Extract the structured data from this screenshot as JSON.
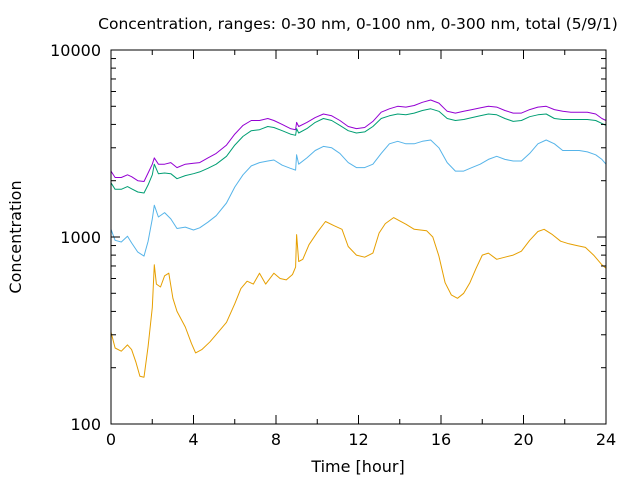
{
  "chart_data": {
    "type": "line",
    "title": "Concentration, ranges: 0-30 nm, 0-100 nm, 0-300 nm, total (5/9/1)",
    "xlabel": "Time [hour]",
    "ylabel": "Concentration",
    "xlim": [
      0,
      24
    ],
    "ylim": [
      100,
      10000
    ],
    "yscale": "log",
    "grid": false,
    "legend": "none",
    "x_ticks": [
      0,
      4,
      8,
      12,
      16,
      20,
      24
    ],
    "x_tick_labels": [
      "0",
      "4",
      "8",
      "12",
      "16",
      "20",
      "24"
    ],
    "y_ticks": [
      100,
      1000,
      10000
    ],
    "y_tick_labels": [
      "100",
      "1000",
      "10000"
    ],
    "series": [
      {
        "color": "#e69f00",
        "points": [
          [
            0,
            310
          ],
          [
            0.2,
            255
          ],
          [
            0.5,
            245
          ],
          [
            0.8,
            265
          ],
          [
            1.0,
            250
          ],
          [
            1.2,
            215
          ],
          [
            1.4,
            180
          ],
          [
            1.6,
            178
          ],
          [
            1.8,
            260
          ],
          [
            2.0,
            420
          ],
          [
            2.1,
            710
          ],
          [
            2.2,
            560
          ],
          [
            2.4,
            540
          ],
          [
            2.6,
            620
          ],
          [
            2.8,
            640
          ],
          [
            3.0,
            470
          ],
          [
            3.2,
            400
          ],
          [
            3.6,
            330
          ],
          [
            3.9,
            270
          ],
          [
            4.1,
            240
          ],
          [
            4.4,
            250
          ],
          [
            4.8,
            275
          ],
          [
            5.2,
            310
          ],
          [
            5.6,
            350
          ],
          [
            6.0,
            440
          ],
          [
            6.3,
            530
          ],
          [
            6.6,
            580
          ],
          [
            6.9,
            560
          ],
          [
            7.2,
            640
          ],
          [
            7.5,
            560
          ],
          [
            7.9,
            640
          ],
          [
            8.2,
            600
          ],
          [
            8.5,
            590
          ],
          [
            8.8,
            630
          ],
          [
            8.95,
            690
          ],
          [
            9.0,
            1030
          ],
          [
            9.1,
            740
          ],
          [
            9.3,
            760
          ],
          [
            9.6,
            910
          ],
          [
            10.0,
            1060
          ],
          [
            10.4,
            1210
          ],
          [
            10.8,
            1150
          ],
          [
            11.2,
            1100
          ],
          [
            11.5,
            890
          ],
          [
            11.9,
            800
          ],
          [
            12.3,
            780
          ],
          [
            12.7,
            820
          ],
          [
            13.0,
            1050
          ],
          [
            13.3,
            1180
          ],
          [
            13.7,
            1270
          ],
          [
            14.0,
            1220
          ],
          [
            14.3,
            1170
          ],
          [
            14.7,
            1100
          ],
          [
            15.0,
            1090
          ],
          [
            15.3,
            1080
          ],
          [
            15.6,
            1000
          ],
          [
            15.9,
            790
          ],
          [
            16.2,
            570
          ],
          [
            16.5,
            490
          ],
          [
            16.8,
            470
          ],
          [
            17.1,
            500
          ],
          [
            17.4,
            570
          ],
          [
            17.7,
            680
          ],
          [
            18.0,
            800
          ],
          [
            18.3,
            820
          ],
          [
            18.7,
            760
          ],
          [
            19.1,
            780
          ],
          [
            19.5,
            800
          ],
          [
            19.9,
            840
          ],
          [
            20.3,
            960
          ],
          [
            20.7,
            1070
          ],
          [
            21.0,
            1100
          ],
          [
            21.4,
            1030
          ],
          [
            21.8,
            950
          ],
          [
            22.2,
            920
          ],
          [
            22.6,
            900
          ],
          [
            23.0,
            880
          ],
          [
            23.4,
            800
          ],
          [
            23.8,
            710
          ],
          [
            24.0,
            680
          ]
        ]
      },
      {
        "color": "#56b4e9",
        "points": [
          [
            0,
            1100
          ],
          [
            0.2,
            960
          ],
          [
            0.5,
            940
          ],
          [
            0.8,
            1010
          ],
          [
            1.0,
            930
          ],
          [
            1.3,
            830
          ],
          [
            1.6,
            790
          ],
          [
            1.8,
            950
          ],
          [
            2.0,
            1250
          ],
          [
            2.1,
            1480
          ],
          [
            2.3,
            1280
          ],
          [
            2.6,
            1350
          ],
          [
            2.9,
            1250
          ],
          [
            3.2,
            1110
          ],
          [
            3.6,
            1130
          ],
          [
            4.0,
            1090
          ],
          [
            4.3,
            1120
          ],
          [
            4.7,
            1200
          ],
          [
            5.1,
            1300
          ],
          [
            5.6,
            1520
          ],
          [
            6.0,
            1850
          ],
          [
            6.4,
            2150
          ],
          [
            6.8,
            2400
          ],
          [
            7.2,
            2500
          ],
          [
            7.6,
            2550
          ],
          [
            7.9,
            2580
          ],
          [
            8.3,
            2420
          ],
          [
            8.7,
            2330
          ],
          [
            8.95,
            2280
          ],
          [
            9.0,
            2750
          ],
          [
            9.1,
            2450
          ],
          [
            9.5,
            2650
          ],
          [
            9.9,
            2900
          ],
          [
            10.3,
            3050
          ],
          [
            10.7,
            3000
          ],
          [
            11.1,
            2800
          ],
          [
            11.5,
            2500
          ],
          [
            11.9,
            2350
          ],
          [
            12.3,
            2350
          ],
          [
            12.7,
            2450
          ],
          [
            13.1,
            2800
          ],
          [
            13.5,
            3150
          ],
          [
            13.9,
            3250
          ],
          [
            14.3,
            3150
          ],
          [
            14.7,
            3150
          ],
          [
            15.1,
            3250
          ],
          [
            15.5,
            3300
          ],
          [
            15.9,
            3000
          ],
          [
            16.3,
            2500
          ],
          [
            16.7,
            2250
          ],
          [
            17.1,
            2250
          ],
          [
            17.5,
            2350
          ],
          [
            17.9,
            2450
          ],
          [
            18.3,
            2600
          ],
          [
            18.7,
            2700
          ],
          [
            19.1,
            2600
          ],
          [
            19.5,
            2550
          ],
          [
            19.9,
            2550
          ],
          [
            20.3,
            2800
          ],
          [
            20.7,
            3150
          ],
          [
            21.1,
            3300
          ],
          [
            21.5,
            3150
          ],
          [
            21.9,
            2900
          ],
          [
            22.3,
            2900
          ],
          [
            22.7,
            2900
          ],
          [
            23.1,
            2850
          ],
          [
            23.5,
            2750
          ],
          [
            23.8,
            2600
          ],
          [
            24.0,
            2450
          ]
        ]
      },
      {
        "color": "#009e73",
        "points": [
          [
            0,
            1950
          ],
          [
            0.2,
            1800
          ],
          [
            0.5,
            1800
          ],
          [
            0.8,
            1860
          ],
          [
            1.0,
            1810
          ],
          [
            1.3,
            1740
          ],
          [
            1.6,
            1720
          ],
          [
            1.8,
            1900
          ],
          [
            2.0,
            2150
          ],
          [
            2.1,
            2450
          ],
          [
            2.3,
            2180
          ],
          [
            2.6,
            2200
          ],
          [
            2.9,
            2180
          ],
          [
            3.2,
            2050
          ],
          [
            3.6,
            2130
          ],
          [
            4.0,
            2180
          ],
          [
            4.3,
            2230
          ],
          [
            4.7,
            2330
          ],
          [
            5.1,
            2450
          ],
          [
            5.6,
            2700
          ],
          [
            6.0,
            3100
          ],
          [
            6.4,
            3450
          ],
          [
            6.8,
            3700
          ],
          [
            7.2,
            3750
          ],
          [
            7.6,
            3900
          ],
          [
            7.9,
            3850
          ],
          [
            8.3,
            3700
          ],
          [
            8.7,
            3550
          ],
          [
            8.95,
            3500
          ],
          [
            9.0,
            3800
          ],
          [
            9.1,
            3600
          ],
          [
            9.5,
            3800
          ],
          [
            9.9,
            4100
          ],
          [
            10.3,
            4300
          ],
          [
            10.7,
            4200
          ],
          [
            11.1,
            3950
          ],
          [
            11.5,
            3700
          ],
          [
            11.9,
            3600
          ],
          [
            12.3,
            3650
          ],
          [
            12.7,
            3900
          ],
          [
            13.1,
            4300
          ],
          [
            13.5,
            4450
          ],
          [
            13.9,
            4550
          ],
          [
            14.3,
            4500
          ],
          [
            14.7,
            4600
          ],
          [
            15.1,
            4750
          ],
          [
            15.5,
            4850
          ],
          [
            15.9,
            4700
          ],
          [
            16.3,
            4300
          ],
          [
            16.7,
            4200
          ],
          [
            17.1,
            4250
          ],
          [
            17.5,
            4350
          ],
          [
            17.9,
            4450
          ],
          [
            18.3,
            4550
          ],
          [
            18.7,
            4500
          ],
          [
            19.1,
            4300
          ],
          [
            19.5,
            4150
          ],
          [
            19.9,
            4200
          ],
          [
            20.3,
            4400
          ],
          [
            20.7,
            4500
          ],
          [
            21.1,
            4550
          ],
          [
            21.5,
            4300
          ],
          [
            21.9,
            4250
          ],
          [
            22.3,
            4250
          ],
          [
            22.7,
            4250
          ],
          [
            23.1,
            4250
          ],
          [
            23.5,
            4200
          ],
          [
            23.8,
            4050
          ],
          [
            24.0,
            3950
          ]
        ]
      },
      {
        "color": "#9400d3",
        "points": [
          [
            0,
            2250
          ],
          [
            0.2,
            2080
          ],
          [
            0.5,
            2080
          ],
          [
            0.8,
            2150
          ],
          [
            1.0,
            2100
          ],
          [
            1.3,
            2000
          ],
          [
            1.6,
            1980
          ],
          [
            1.8,
            2200
          ],
          [
            2.0,
            2450
          ],
          [
            2.1,
            2650
          ],
          [
            2.3,
            2450
          ],
          [
            2.6,
            2450
          ],
          [
            2.9,
            2500
          ],
          [
            3.2,
            2350
          ],
          [
            3.6,
            2450
          ],
          [
            4.0,
            2480
          ],
          [
            4.3,
            2500
          ],
          [
            4.7,
            2650
          ],
          [
            5.1,
            2800
          ],
          [
            5.6,
            3100
          ],
          [
            6.0,
            3550
          ],
          [
            6.4,
            3950
          ],
          [
            6.8,
            4200
          ],
          [
            7.2,
            4200
          ],
          [
            7.6,
            4300
          ],
          [
            7.9,
            4200
          ],
          [
            8.3,
            4000
          ],
          [
            8.7,
            3800
          ],
          [
            8.95,
            3750
          ],
          [
            9.0,
            4100
          ],
          [
            9.1,
            3900
          ],
          [
            9.5,
            4100
          ],
          [
            9.9,
            4350
          ],
          [
            10.3,
            4550
          ],
          [
            10.7,
            4450
          ],
          [
            11.1,
            4200
          ],
          [
            11.5,
            3900
          ],
          [
            11.9,
            3800
          ],
          [
            12.3,
            3850
          ],
          [
            12.7,
            4150
          ],
          [
            13.1,
            4650
          ],
          [
            13.5,
            4850
          ],
          [
            13.9,
            5000
          ],
          [
            14.3,
            4950
          ],
          [
            14.7,
            5050
          ],
          [
            15.1,
            5250
          ],
          [
            15.5,
            5400
          ],
          [
            15.9,
            5200
          ],
          [
            16.3,
            4700
          ],
          [
            16.7,
            4600
          ],
          [
            17.1,
            4700
          ],
          [
            17.5,
            4800
          ],
          [
            17.9,
            4900
          ],
          [
            18.3,
            5000
          ],
          [
            18.7,
            4950
          ],
          [
            19.1,
            4750
          ],
          [
            19.5,
            4600
          ],
          [
            19.9,
            4600
          ],
          [
            20.3,
            4800
          ],
          [
            20.7,
            4950
          ],
          [
            21.1,
            5000
          ],
          [
            21.5,
            4800
          ],
          [
            21.9,
            4700
          ],
          [
            22.3,
            4650
          ],
          [
            22.7,
            4650
          ],
          [
            23.1,
            4650
          ],
          [
            23.5,
            4550
          ],
          [
            23.8,
            4300
          ],
          [
            24.0,
            4200
          ]
        ]
      }
    ]
  }
}
